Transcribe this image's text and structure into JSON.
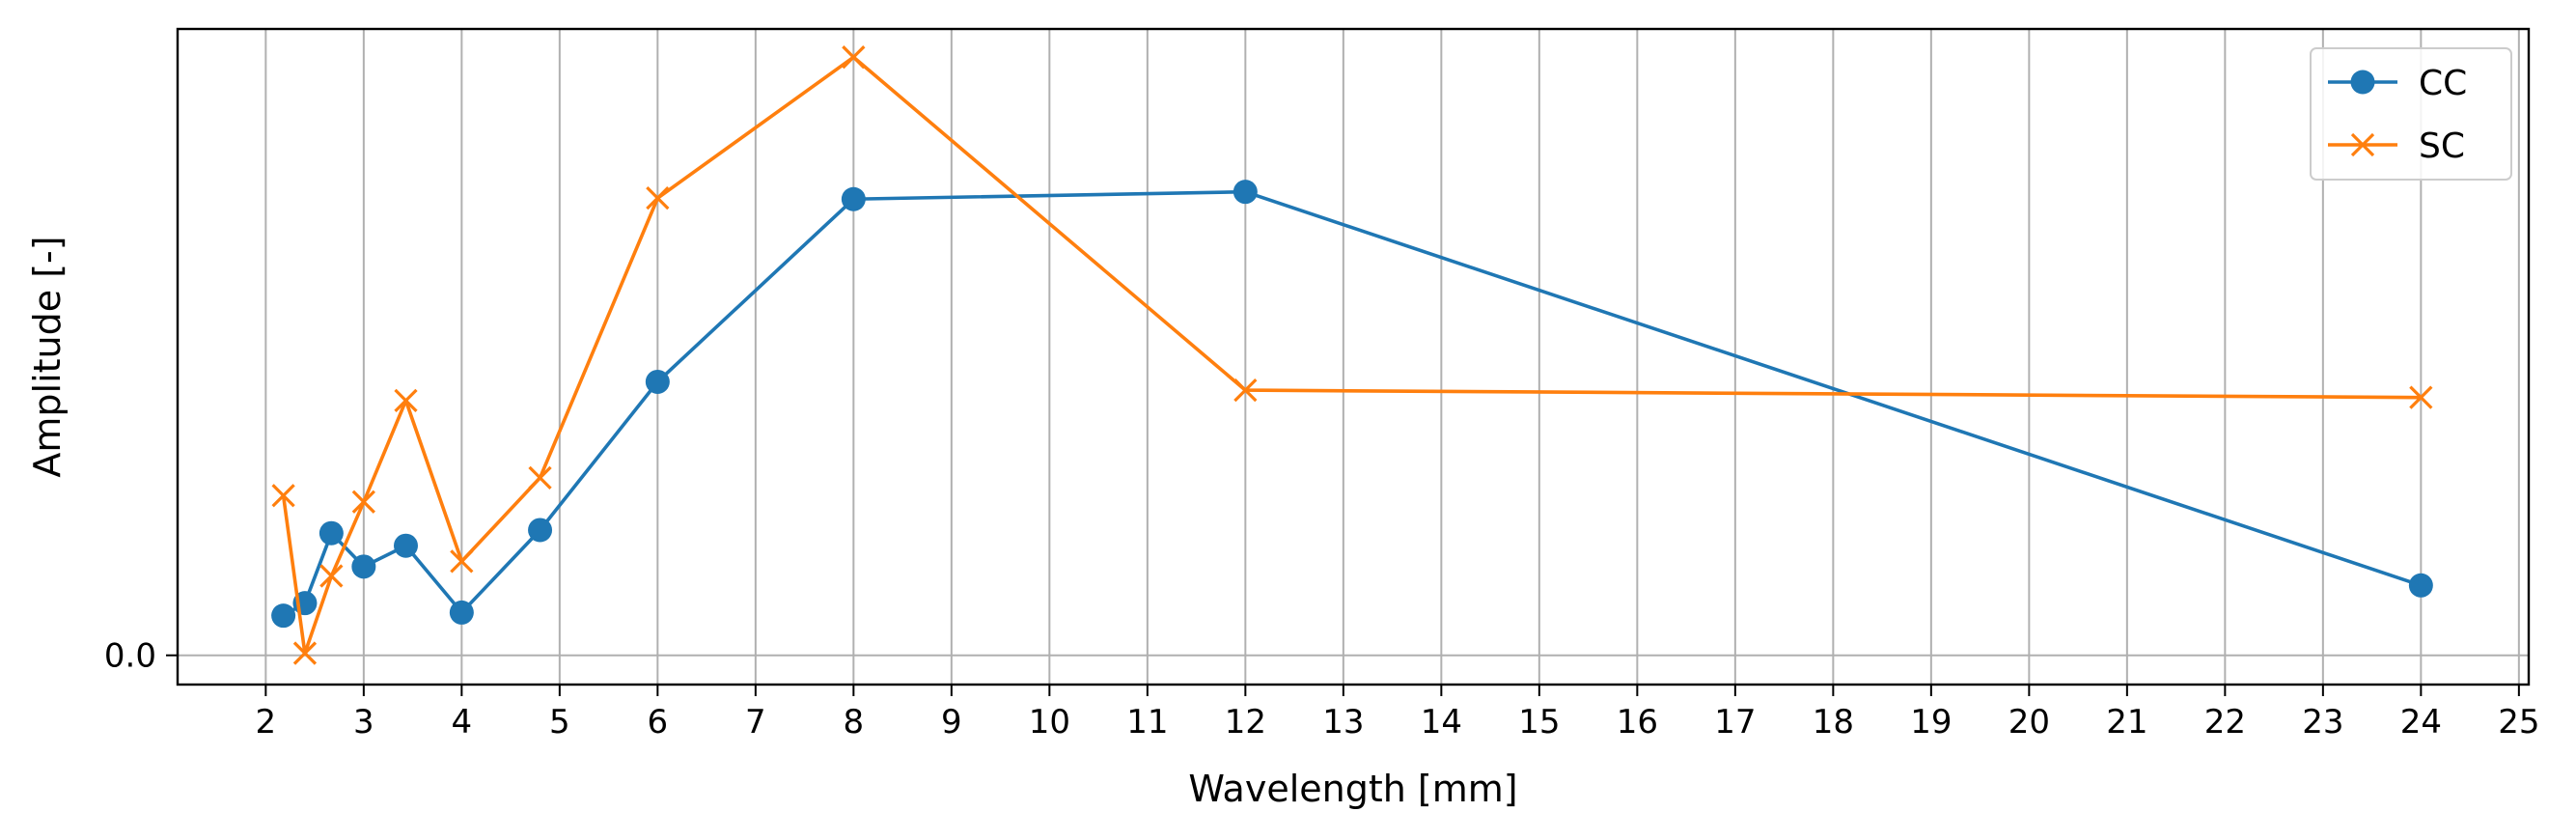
{
  "chart_data": {
    "type": "line",
    "title": "",
    "xlabel": "Wavelength [mm]",
    "ylabel": "Amplitude [-]",
    "xlim": [
      1.1,
      25.1
    ],
    "ylim": [
      -0.028,
      0.6
    ],
    "xticks": [
      2,
      3,
      4,
      5,
      6,
      7,
      8,
      9,
      10,
      11,
      12,
      13,
      14,
      15,
      16,
      17,
      18,
      19,
      20,
      21,
      22,
      23,
      24,
      25
    ],
    "xtick_labels": [
      "2",
      "3",
      "4",
      "5",
      "6",
      "7",
      "8",
      "9",
      "10",
      "11",
      "12",
      "13",
      "14",
      "15",
      "16",
      "17",
      "18",
      "19",
      "20",
      "21",
      "22",
      "23",
      "24",
      "25"
    ],
    "yticks": [
      0.0
    ],
    "ytick_labels": [
      "0.0"
    ],
    "grid_x": true,
    "grid_y": true,
    "legend_position": "top-right",
    "series": [
      {
        "name": "CC",
        "color": "#1f77b4",
        "marker": "circle",
        "x": [
          2.18,
          2.4,
          2.67,
          3.0,
          3.43,
          4.0,
          4.8,
          6.0,
          8.0,
          12.0,
          24.0
        ],
        "y": [
          0.038,
          0.05,
          0.117,
          0.085,
          0.105,
          0.041,
          0.12,
          0.262,
          0.437,
          0.444,
          0.067
        ]
      },
      {
        "name": "SC",
        "color": "#ff7f0e",
        "marker": "x",
        "x": [
          2.18,
          2.4,
          2.67,
          3.0,
          3.43,
          4.0,
          4.8,
          6.0,
          8.0,
          12.0,
          24.0
        ],
        "y": [
          0.153,
          0.002,
          0.076,
          0.147,
          0.244,
          0.09,
          0.17,
          0.438,
          0.573,
          0.254,
          0.247
        ]
      }
    ]
  }
}
